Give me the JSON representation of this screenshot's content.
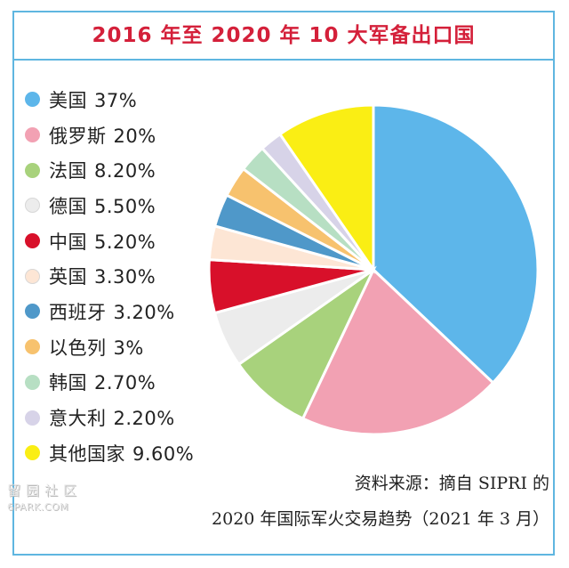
{
  "chart_data": {
    "type": "pie",
    "title": "2016 年至 2020 年 10 大军备出口国",
    "slices": [
      {
        "label": "美国",
        "value_text": "37%",
        "value": 37,
        "color": "#5db6ea"
      },
      {
        "label": "俄罗斯",
        "value_text": "20%",
        "value": 20,
        "color": "#f2a1b3"
      },
      {
        "label": "法国",
        "value_text": "8.20%",
        "value": 8.2,
        "color": "#a8d27c"
      },
      {
        "label": "德国",
        "value_text": "5.50%",
        "value": 5.5,
        "color": "#ececec"
      },
      {
        "label": "中国",
        "value_text": "5.20%",
        "value": 5.2,
        "color": "#d8102a"
      },
      {
        "label": "英国",
        "value_text": "3.30%",
        "value": 3.3,
        "color": "#fde6d5"
      },
      {
        "label": "西班牙",
        "value_text": "3.20%",
        "value": 3.2,
        "color": "#4f98c9"
      },
      {
        "label": "以色列",
        "value_text": "3%",
        "value": 3,
        "color": "#f7c26e"
      },
      {
        "label": "韩国",
        "value_text": "2.70%",
        "value": 2.7,
        "color": "#b7dfc3"
      },
      {
        "label": "意大利",
        "value_text": "2.20%",
        "value": 2.2,
        "color": "#d7d3e8"
      },
      {
        "label": "其他国家",
        "value_text": "9.60%",
        "value": 9.6,
        "color": "#faee14"
      }
    ],
    "legend_position": "left"
  },
  "source": {
    "line1": "资料来源：摘自 SIPRI 的",
    "line2": "2020 年国际军火交易趋势（2021 年 3 月）"
  },
  "watermark": {
    "line1": "留园社区",
    "line2": "6PARK.COM"
  }
}
